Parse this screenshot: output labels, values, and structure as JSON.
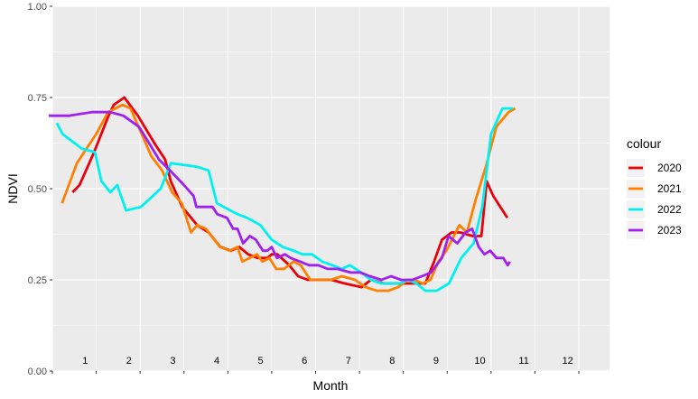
{
  "chart_data": {
    "type": "line",
    "xlabel": "Month",
    "ylabel": "NDVI",
    "xlim": [
      0.5,
      13.2
    ],
    "ylim": [
      0,
      1
    ],
    "y_ticks": [
      "0.00",
      "0.25",
      "0.50",
      "0.75",
      "1.00"
    ],
    "y_tick_values": [
      0,
      0.25,
      0.5,
      0.75,
      1.0
    ],
    "month_labels": [
      "1",
      "2",
      "3",
      "4",
      "5",
      "6",
      "7",
      "8",
      "9",
      "10",
      "11",
      "12"
    ],
    "month_positions": [
      1,
      2,
      3,
      4,
      5,
      6,
      7,
      8,
      9,
      10,
      11,
      12
    ],
    "grid": true,
    "legend": {
      "title": "colour",
      "placement": "right"
    },
    "series": [
      {
        "name": "2020",
        "color": "#e8000b",
        "points": [
          [
            0.96,
            0.49
          ],
          [
            1.12,
            0.51
          ],
          [
            1.45,
            0.6
          ],
          [
            1.78,
            0.7
          ],
          [
            1.9,
            0.73
          ],
          [
            2.14,
            0.75
          ],
          [
            2.45,
            0.7
          ],
          [
            2.85,
            0.62
          ],
          [
            3.07,
            0.58
          ],
          [
            3.2,
            0.52
          ],
          [
            3.46,
            0.45
          ],
          [
            3.8,
            0.4
          ],
          [
            4.06,
            0.38
          ],
          [
            4.33,
            0.34
          ],
          [
            4.57,
            0.33
          ],
          [
            4.76,
            0.34
          ],
          [
            4.96,
            0.32
          ],
          [
            5.18,
            0.31
          ],
          [
            5.4,
            0.31
          ],
          [
            5.5,
            0.32
          ],
          [
            5.63,
            0.32
          ],
          [
            5.9,
            0.29
          ],
          [
            6.1,
            0.26
          ],
          [
            6.32,
            0.25
          ],
          [
            6.6,
            0.25
          ],
          [
            6.86,
            0.25
          ],
          [
            7.16,
            0.24
          ],
          [
            7.55,
            0.23
          ],
          [
            7.76,
            0.25
          ],
          [
            8.05,
            0.24
          ],
          [
            8.3,
            0.24
          ],
          [
            8.62,
            0.24
          ],
          [
            8.86,
            0.24
          ],
          [
            9.0,
            0.24
          ],
          [
            9.2,
            0.3
          ],
          [
            9.38,
            0.36
          ],
          [
            9.6,
            0.38
          ],
          [
            9.8,
            0.38
          ],
          [
            10.08,
            0.37
          ],
          [
            10.28,
            0.37
          ],
          [
            10.4,
            0.52
          ],
          [
            10.55,
            0.48
          ],
          [
            10.87,
            0.42
          ]
        ]
      },
      {
        "name": "2021",
        "color": "#ff8000",
        "points": [
          [
            0.72,
            0.46
          ],
          [
            1.06,
            0.57
          ],
          [
            1.5,
            0.65
          ],
          [
            1.77,
            0.71
          ],
          [
            2.1,
            0.73
          ],
          [
            2.28,
            0.72
          ],
          [
            2.5,
            0.66
          ],
          [
            2.75,
            0.59
          ],
          [
            3.0,
            0.55
          ],
          [
            3.23,
            0.49
          ],
          [
            3.45,
            0.46
          ],
          [
            3.66,
            0.38
          ],
          [
            3.8,
            0.4
          ],
          [
            4.0,
            0.39
          ],
          [
            4.32,
            0.34
          ],
          [
            4.54,
            0.33
          ],
          [
            4.72,
            0.34
          ],
          [
            4.83,
            0.3
          ],
          [
            5.0,
            0.31
          ],
          [
            5.16,
            0.32
          ],
          [
            5.29,
            0.3
          ],
          [
            5.45,
            0.31
          ],
          [
            5.6,
            0.28
          ],
          [
            5.78,
            0.28
          ],
          [
            6.0,
            0.3
          ],
          [
            6.16,
            0.29
          ],
          [
            6.38,
            0.25
          ],
          [
            6.65,
            0.25
          ],
          [
            6.85,
            0.25
          ],
          [
            7.1,
            0.26
          ],
          [
            7.4,
            0.25
          ],
          [
            7.64,
            0.23
          ],
          [
            7.9,
            0.22
          ],
          [
            8.16,
            0.22
          ],
          [
            8.38,
            0.23
          ],
          [
            8.6,
            0.25
          ],
          [
            8.75,
            0.25
          ],
          [
            8.95,
            0.24
          ],
          [
            9.12,
            0.25
          ],
          [
            9.3,
            0.3
          ],
          [
            9.48,
            0.33
          ],
          [
            9.78,
            0.4
          ],
          [
            9.95,
            0.38
          ],
          [
            10.15,
            0.47
          ],
          [
            10.38,
            0.56
          ],
          [
            10.62,
            0.67
          ],
          [
            10.9,
            0.71
          ],
          [
            11.05,
            0.72
          ]
        ]
      },
      {
        "name": "2022",
        "color": "#00f0f0",
        "points": [
          [
            0.6,
            0.68
          ],
          [
            0.73,
            0.65
          ],
          [
            1.17,
            0.61
          ],
          [
            1.47,
            0.6
          ],
          [
            1.62,
            0.52
          ],
          [
            1.82,
            0.49
          ],
          [
            1.98,
            0.51
          ],
          [
            2.18,
            0.44
          ],
          [
            2.52,
            0.45
          ],
          [
            2.97,
            0.5
          ],
          [
            3.2,
            0.57
          ],
          [
            3.8,
            0.56
          ],
          [
            4.06,
            0.55
          ],
          [
            4.25,
            0.46
          ],
          [
            4.72,
            0.43
          ],
          [
            4.94,
            0.42
          ],
          [
            5.24,
            0.4
          ],
          [
            5.5,
            0.36
          ],
          [
            5.75,
            0.34
          ],
          [
            6.0,
            0.33
          ],
          [
            6.2,
            0.32
          ],
          [
            6.42,
            0.32
          ],
          [
            6.65,
            0.3
          ],
          [
            6.88,
            0.29
          ],
          [
            7.1,
            0.28
          ],
          [
            7.28,
            0.29
          ],
          [
            7.54,
            0.27
          ],
          [
            7.76,
            0.25
          ],
          [
            8.0,
            0.24
          ],
          [
            8.24,
            0.24
          ],
          [
            8.42,
            0.24
          ],
          [
            8.6,
            0.25
          ],
          [
            8.8,
            0.24
          ],
          [
            9.0,
            0.22
          ],
          [
            9.26,
            0.22
          ],
          [
            9.54,
            0.24
          ],
          [
            9.82,
            0.31
          ],
          [
            10.1,
            0.35
          ],
          [
            10.3,
            0.45
          ],
          [
            10.5,
            0.65
          ],
          [
            10.76,
            0.72
          ],
          [
            11.0,
            0.72
          ]
        ]
      },
      {
        "name": "2023",
        "color": "#a020f0",
        "points": [
          [
            0.42,
            0.7
          ],
          [
            0.87,
            0.7
          ],
          [
            1.4,
            0.71
          ],
          [
            1.82,
            0.71
          ],
          [
            2.12,
            0.7
          ],
          [
            2.47,
            0.67
          ],
          [
            2.73,
            0.62
          ],
          [
            2.93,
            0.58
          ],
          [
            3.18,
            0.55
          ],
          [
            3.5,
            0.51
          ],
          [
            3.72,
            0.48
          ],
          [
            3.78,
            0.45
          ],
          [
            4.15,
            0.45
          ],
          [
            4.26,
            0.43
          ],
          [
            4.48,
            0.42
          ],
          [
            4.62,
            0.39
          ],
          [
            4.72,
            0.39
          ],
          [
            4.85,
            0.35
          ],
          [
            5.0,
            0.37
          ],
          [
            5.14,
            0.36
          ],
          [
            5.3,
            0.33
          ],
          [
            5.4,
            0.33
          ],
          [
            5.5,
            0.34
          ],
          [
            5.62,
            0.31
          ],
          [
            5.8,
            0.32
          ],
          [
            5.93,
            0.31
          ],
          [
            6.15,
            0.3
          ],
          [
            6.35,
            0.29
          ],
          [
            6.56,
            0.29
          ],
          [
            6.78,
            0.28
          ],
          [
            7.0,
            0.28
          ],
          [
            7.3,
            0.27
          ],
          [
            7.52,
            0.27
          ],
          [
            7.74,
            0.26
          ],
          [
            8.0,
            0.25
          ],
          [
            8.22,
            0.26
          ],
          [
            8.45,
            0.25
          ],
          [
            8.7,
            0.25
          ],
          [
            8.92,
            0.26
          ],
          [
            9.13,
            0.27
          ],
          [
            9.38,
            0.31
          ],
          [
            9.53,
            0.37
          ],
          [
            9.73,
            0.35
          ],
          [
            9.92,
            0.38
          ],
          [
            10.07,
            0.39
          ],
          [
            10.22,
            0.34
          ],
          [
            10.35,
            0.32
          ],
          [
            10.48,
            0.33
          ],
          [
            10.62,
            0.31
          ],
          [
            10.78,
            0.31
          ],
          [
            10.88,
            0.29
          ],
          [
            10.93,
            0.3
          ]
        ]
      }
    ]
  }
}
